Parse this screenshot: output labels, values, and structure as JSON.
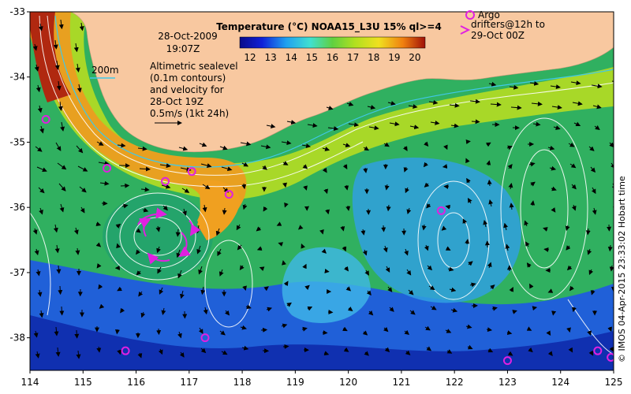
{
  "map": {
    "date": "28-Oct-2009",
    "time": "19:07Z",
    "depth_contour_label": "200m",
    "altimetry_note": [
      "Altimetric sealevel",
      "(0.1m contours)",
      "and velocity for",
      "28-Oct 19Z"
    ],
    "velocity_scale_label": "0.5m/s (1kt 24h)",
    "argo_label": "Argo",
    "drifters_note": [
      "drifters@12h to",
      "29-Oct 00Z"
    ],
    "colorbar_title": "Temperature (°C) NOAA15_L3U 15% ql>=4",
    "colorbar_ticks": [
      "12",
      "13",
      "14",
      "15",
      "16",
      "17",
      "18",
      "19",
      "20"
    ],
    "credit": "© IMOS 04-Apr-2015 23:33:02 Hobart time",
    "lon_ticks": [
      "114",
      "115",
      "116",
      "117",
      "118",
      "119",
      "120",
      "121",
      "122",
      "123",
      "124",
      "125"
    ],
    "lat_ticks": [
      "-33",
      "-34",
      "-35",
      "-36",
      "-37",
      "-38"
    ],
    "colors": {
      "land": "#f8c8a0",
      "contour": "#ffffff",
      "depth_line": "#40c8e8",
      "argo": "#e020e0"
    }
  },
  "chart_data": {
    "type": "heatmap",
    "title": "Temperature (°C) NOAA15_L3U 15% ql>=4",
    "xlabel": "",
    "ylabel": "",
    "xlim": [
      114,
      125
    ],
    "ylim": [
      -38.5,
      -33
    ],
    "colorbar_range": [
      11.5,
      20.5
    ],
    "argo_floats": [
      {
        "lon": 114.3,
        "lat": -34.65
      },
      {
        "lon": 115.45,
        "lat": -35.4
      },
      {
        "lon": 116.55,
        "lat": -35.6
      },
      {
        "lon": 117.05,
        "lat": -35.45
      },
      {
        "lon": 117.75,
        "lat": -35.8
      },
      {
        "lon": 121.75,
        "lat": -36.05
      },
      {
        "lon": 117.3,
        "lat": -38.0
      },
      {
        "lon": 115.8,
        "lat": -38.2
      },
      {
        "lon": 124.7,
        "lat": -38.2
      },
      {
        "lon": 124.95,
        "lat": -38.3
      },
      {
        "lon": 123.0,
        "lat": -38.35
      }
    ]
  }
}
